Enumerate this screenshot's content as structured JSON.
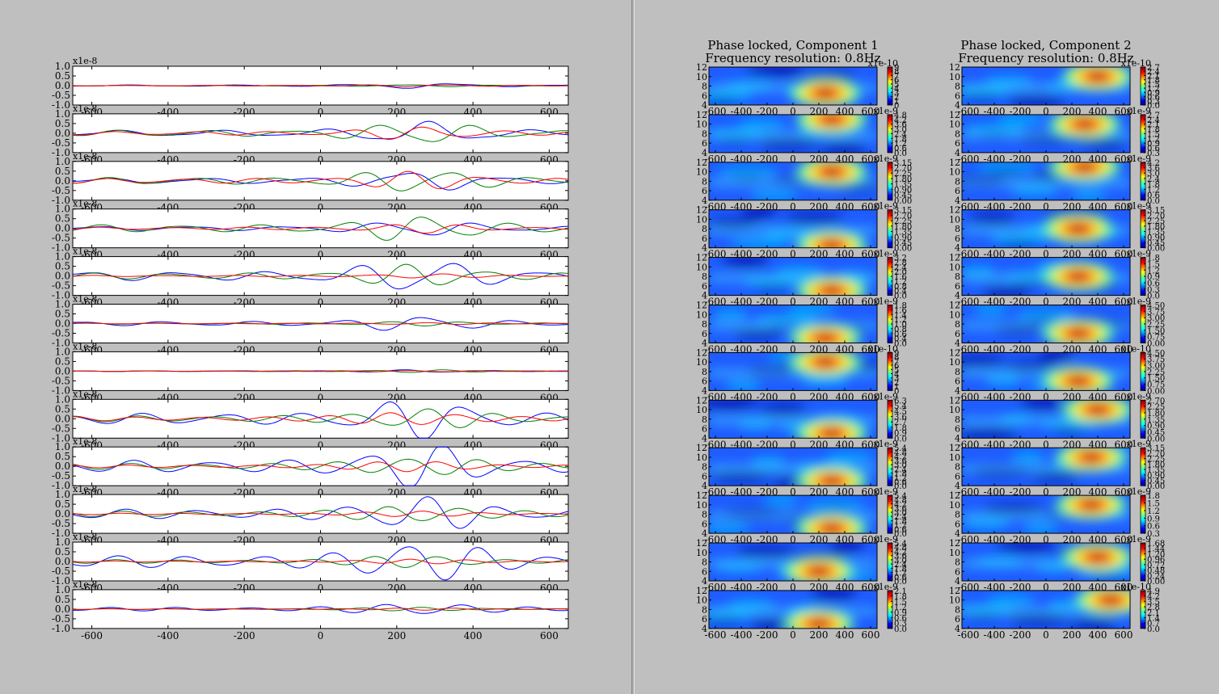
{
  "left": {
    "offset_label": "x1e-8",
    "num_panels": 12,
    "yticks": [
      "1.0",
      "0.5",
      "0.0",
      "-0.5",
      "-1.0"
    ],
    "xticks": [
      "-600",
      "-400",
      "-200",
      "0",
      "200",
      "400",
      "600"
    ]
  },
  "right": {
    "columns": [
      {
        "title_line1": "Phase locked, Component 1",
        "title_line2": "Frequency resolution: 0.8Hz",
        "colorbar_offsets": [
          "x1e-10",
          "x1e-9",
          "x1e-9",
          "x1e-9",
          "x1e-9",
          "x1e-9",
          "x1e-10",
          "x1e-9",
          "x1e-9",
          "x1e-9",
          "x1e-9",
          "x1e-9"
        ],
        "colorbar_ticks": [
          [
            "9",
            "8",
            "7",
            "6",
            "5",
            "4",
            "3",
            "2",
            "1",
            "0"
          ],
          [
            "4.8",
            "4.2",
            "3.6",
            "3.0",
            "2.4",
            "1.8",
            "1.2",
            "0.6",
            "0.0"
          ],
          [
            "3.15",
            "2.70",
            "2.25",
            "1.80",
            "1.35",
            "0.90",
            "0.45",
            "0.00"
          ],
          [
            "3.15",
            "2.70",
            "2.25",
            "1.80",
            "1.35",
            "0.90",
            "0.45",
            "0.00"
          ],
          [
            "3.2",
            "2.8",
            "2.4",
            "2.0",
            "1.6",
            "1.2",
            "0.8",
            "0.4",
            "0.0"
          ],
          [
            "1.8",
            "1.6",
            "1.4",
            "1.2",
            "1.0",
            "0.8",
            "0.6",
            "0.4",
            "0.0"
          ],
          [
            "9",
            "8",
            "7",
            "6",
            "5",
            "4",
            "3",
            "2",
            "1",
            "0"
          ],
          [
            "6.3",
            "5.4",
            "4.5",
            "3.6",
            "2.7",
            "1.8",
            "0.9",
            "0.0"
          ],
          [
            "5.4",
            "4.8",
            "4.2",
            "3.6",
            "3.0",
            "2.4",
            "1.8",
            "1.2",
            "0.6",
            "0.0"
          ],
          [
            "5.4",
            "4.8",
            "4.2",
            "3.6",
            "3.0",
            "2.4",
            "1.8",
            "1.2",
            "0.6",
            "0.0"
          ],
          [
            "5.4",
            "4.8",
            "4.2",
            "3.6",
            "3.0",
            "2.4",
            "1.8",
            "1.2",
            "0.6",
            "0.0"
          ],
          [
            "2.1",
            "1.8",
            "1.5",
            "1.2",
            "0.9",
            "0.6",
            "0.3",
            "0.0"
          ]
        ]
      },
      {
        "title_line1": "Phase locked, Component 2",
        "title_line2": "Frequency resolution: 0.8Hz",
        "colorbar_offsets": [
          "x1e-10",
          "x1e-9",
          "x1e-9",
          "x1e-9",
          "x1e-9",
          "x1e-9",
          "x1e-10",
          "x1e-9",
          "x1e-9",
          "x1e-9",
          "x1e-9",
          "x1e-10"
        ],
        "colorbar_ticks": [
          [
            "2.7",
            "2.4",
            "2.1",
            "1.8",
            "1.5",
            "1.2",
            "0.9",
            "0.6",
            "0.3",
            "0.0"
          ],
          [
            "2.7",
            "2.4",
            "2.1",
            "1.8",
            "1.5",
            "1.2",
            "0.9",
            "0.6",
            "0.3"
          ],
          [
            "4.2",
            "3.6",
            "3.0",
            "2.4",
            "1.8",
            "1.2",
            "0.6",
            "0.0"
          ],
          [
            "3.15",
            "2.70",
            "2.25",
            "1.80",
            "1.35",
            "0.90",
            "0.45",
            "0.00"
          ],
          [
            "1.8",
            "1.5",
            "1.2",
            "0.9",
            "0.6",
            "0.3",
            "0.0"
          ],
          [
            "4.50",
            "3.75",
            "3.00",
            "2.25",
            "1.50",
            "0.75",
            "0.00"
          ],
          [
            "4.50",
            "3.75",
            "3.00",
            "2.25",
            "1.50",
            "0.75",
            "0.00"
          ],
          [
            "2.70",
            "2.25",
            "1.80",
            "1.35",
            "0.90",
            "0.45",
            "0.00"
          ],
          [
            "3.15",
            "2.70",
            "2.25",
            "1.80",
            "1.35",
            "0.90",
            "0.45",
            "0.00"
          ],
          [
            "1.8",
            "1.5",
            "1.2",
            "0.9",
            "0.6",
            "0.3"
          ],
          [
            "1.68",
            "1.44",
            "1.20",
            "0.96",
            "0.72",
            "0.48",
            "0.24",
            "0.00"
          ],
          [
            "4.9",
            "4.2",
            "3.5",
            "2.8",
            "2.1",
            "1.4",
            "0.7",
            "0.0"
          ]
        ]
      }
    ],
    "yticks": [
      "12",
      "10",
      "8",
      "6",
      "4"
    ],
    "xticks": [
      "-600",
      "-400",
      "-200",
      "0",
      "200",
      "400",
      "600"
    ]
  },
  "chart_data": [
    {
      "type": "line",
      "title": "",
      "panels": 12,
      "series_colors": [
        "#0000ff",
        "#008000",
        "#ff0000"
      ],
      "xlim": [
        -650,
        650
      ],
      "ylim": [
        -1.0,
        1.0
      ],
      "y_scale_label": "x1e-8",
      "xticks": [
        -600,
        -400,
        -200,
        0,
        200,
        400,
        600
      ],
      "yticks": [
        1.0,
        0.5,
        0.0,
        -0.5,
        -1.0
      ],
      "panel_amplitudes": {
        "blue": [
          0.12,
          0.5,
          0.45,
          0.35,
          0.75,
          0.35,
          0.06,
          0.9,
          1.0,
          0.8,
          1.0,
          0.3
        ],
        "green": [
          0.05,
          0.5,
          0.55,
          0.6,
          0.5,
          0.1,
          0.06,
          0.5,
          0.5,
          0.45,
          0.3,
          0.08
        ],
        "red": [
          0.05,
          0.3,
          0.4,
          0.2,
          0.1,
          0.05,
          0.04,
          0.35,
          0.25,
          0.12,
          0.1,
          0.05
        ]
      },
      "grid": false
    },
    {
      "type": "heatmap",
      "title": "Phase locked, Component 1",
      "subtitle": "Frequency resolution: 0.8Hz",
      "panels": 12,
      "xlim": [
        -650,
        650
      ],
      "ylim": [
        4,
        12
      ],
      "colormap": "jet",
      "hot_spots": [
        {
          "panel": 1,
          "time": 250,
          "freq": 6.5
        },
        {
          "panel": 2,
          "time": 300,
          "freq": 11
        },
        {
          "panel": 3,
          "time": 300,
          "freq": 10
        },
        {
          "panel": 4,
          "time": 300,
          "freq": 4.5
        },
        {
          "panel": 5,
          "time": 300,
          "freq": 5
        },
        {
          "panel": 6,
          "time": 250,
          "freq": 5
        },
        {
          "panel": 7,
          "time": 250,
          "freq": 10
        },
        {
          "panel": 8,
          "time": 300,
          "freq": 5
        },
        {
          "panel": 9,
          "time": 300,
          "freq": 5
        },
        {
          "panel": 10,
          "time": 300,
          "freq": 5
        },
        {
          "panel": 11,
          "time": 200,
          "freq": 6
        },
        {
          "panel": 12,
          "time": 200,
          "freq": 5
        }
      ]
    },
    {
      "type": "heatmap",
      "title": "Phase locked, Component 2",
      "subtitle": "Frequency resolution: 0.8Hz",
      "panels": 12,
      "xlim": [
        -650,
        650
      ],
      "ylim": [
        4,
        12
      ],
      "colormap": "jet",
      "hot_spots": [
        {
          "panel": 1,
          "time": 400,
          "freq": 10
        },
        {
          "panel": 2,
          "time": 300,
          "freq": 10
        },
        {
          "panel": 3,
          "time": 300,
          "freq": 11
        },
        {
          "panel": 4,
          "time": 250,
          "freq": 8
        },
        {
          "panel": 5,
          "time": 250,
          "freq": 8
        },
        {
          "panel": 6,
          "time": 250,
          "freq": 6
        },
        {
          "panel": 7,
          "time": 250,
          "freq": 6
        },
        {
          "panel": 8,
          "time": 400,
          "freq": 10
        },
        {
          "panel": 9,
          "time": 350,
          "freq": 10
        },
        {
          "panel": 10,
          "time": 350,
          "freq": 10
        },
        {
          "panel": 11,
          "time": 400,
          "freq": 9
        },
        {
          "panel": 12,
          "time": 500,
          "freq": 10
        }
      ]
    }
  ]
}
